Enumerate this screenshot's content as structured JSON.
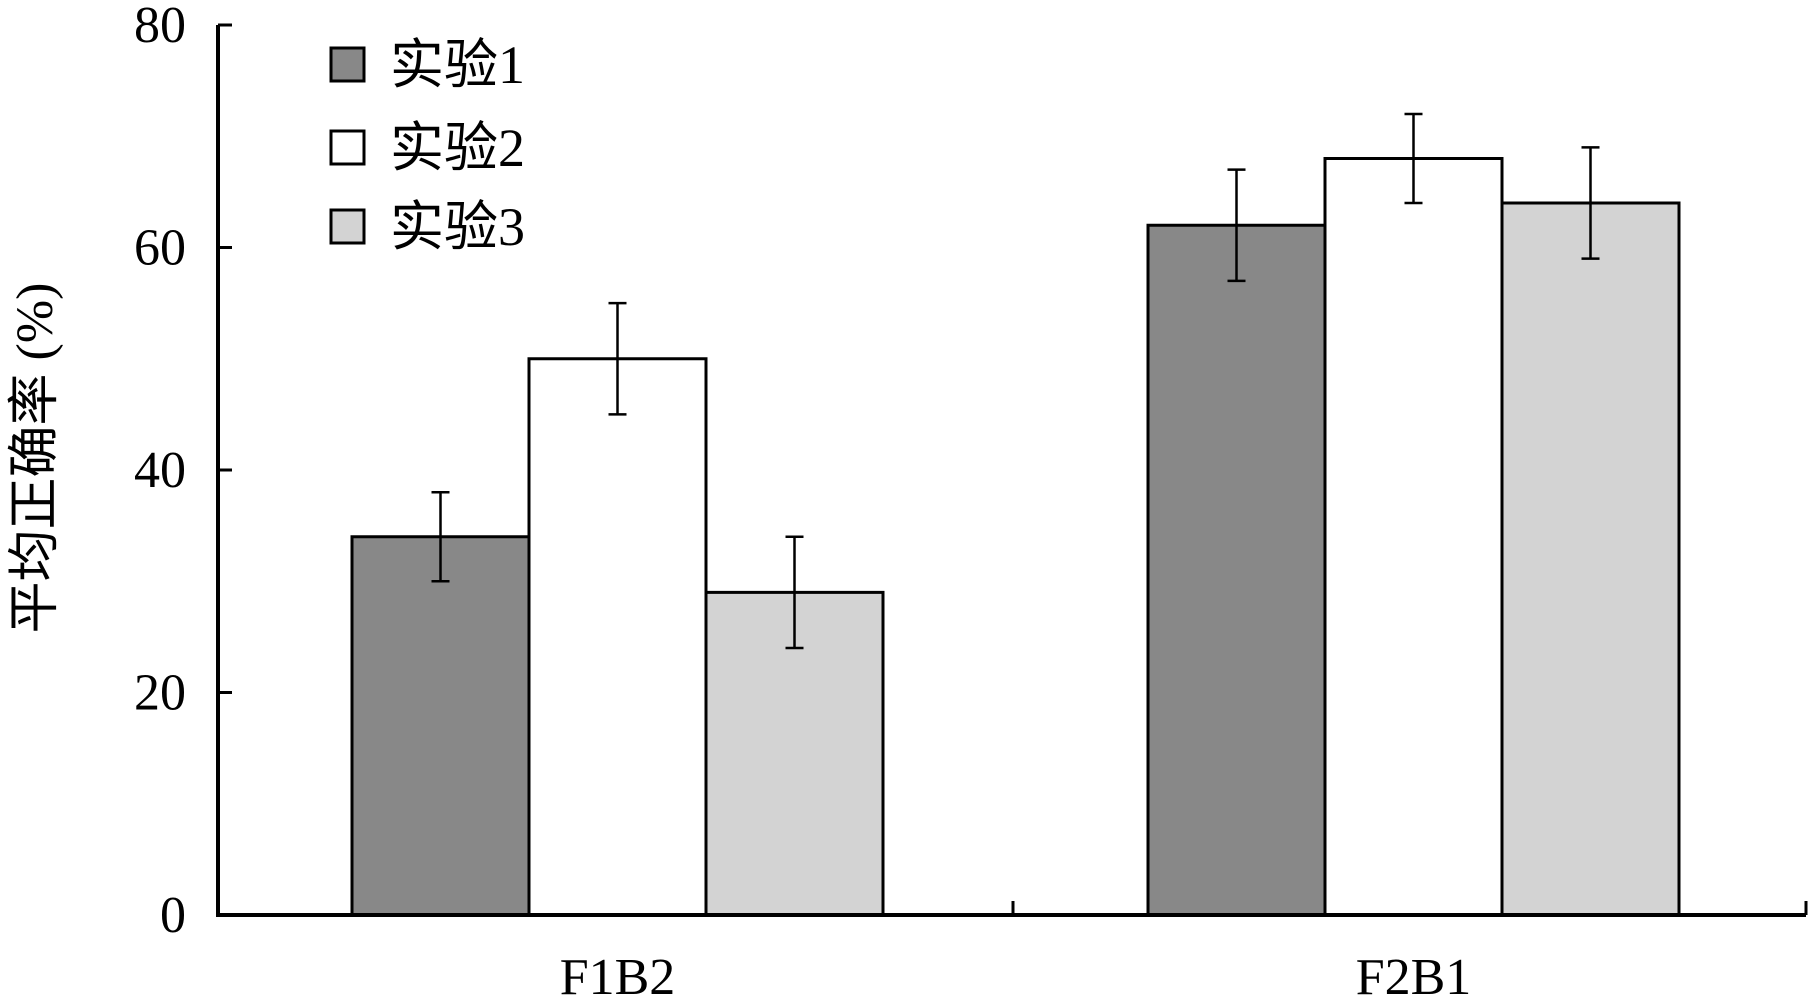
{
  "chart_data": {
    "type": "bar",
    "title": "",
    "xlabel": "",
    "ylabel": "平均正确率 (%)",
    "categories": [
      "F1B2",
      "F2B1"
    ],
    "series": [
      {
        "name": "实验1",
        "values": [
          34,
          62
        ],
        "errors": [
          4,
          5
        ],
        "color": "#888888"
      },
      {
        "name": "实验2",
        "values": [
          50,
          68
        ],
        "errors": [
          5,
          4
        ],
        "color": "#ffffff"
      },
      {
        "name": "实验3",
        "values": [
          29,
          64
        ],
        "errors": [
          5,
          5
        ],
        "color": "#d3d3d3"
      }
    ],
    "ylim": [
      0,
      80
    ],
    "yticks": [
      "0",
      "20",
      "40",
      "60",
      "80"
    ],
    "grid": false,
    "legend": "top-left"
  }
}
